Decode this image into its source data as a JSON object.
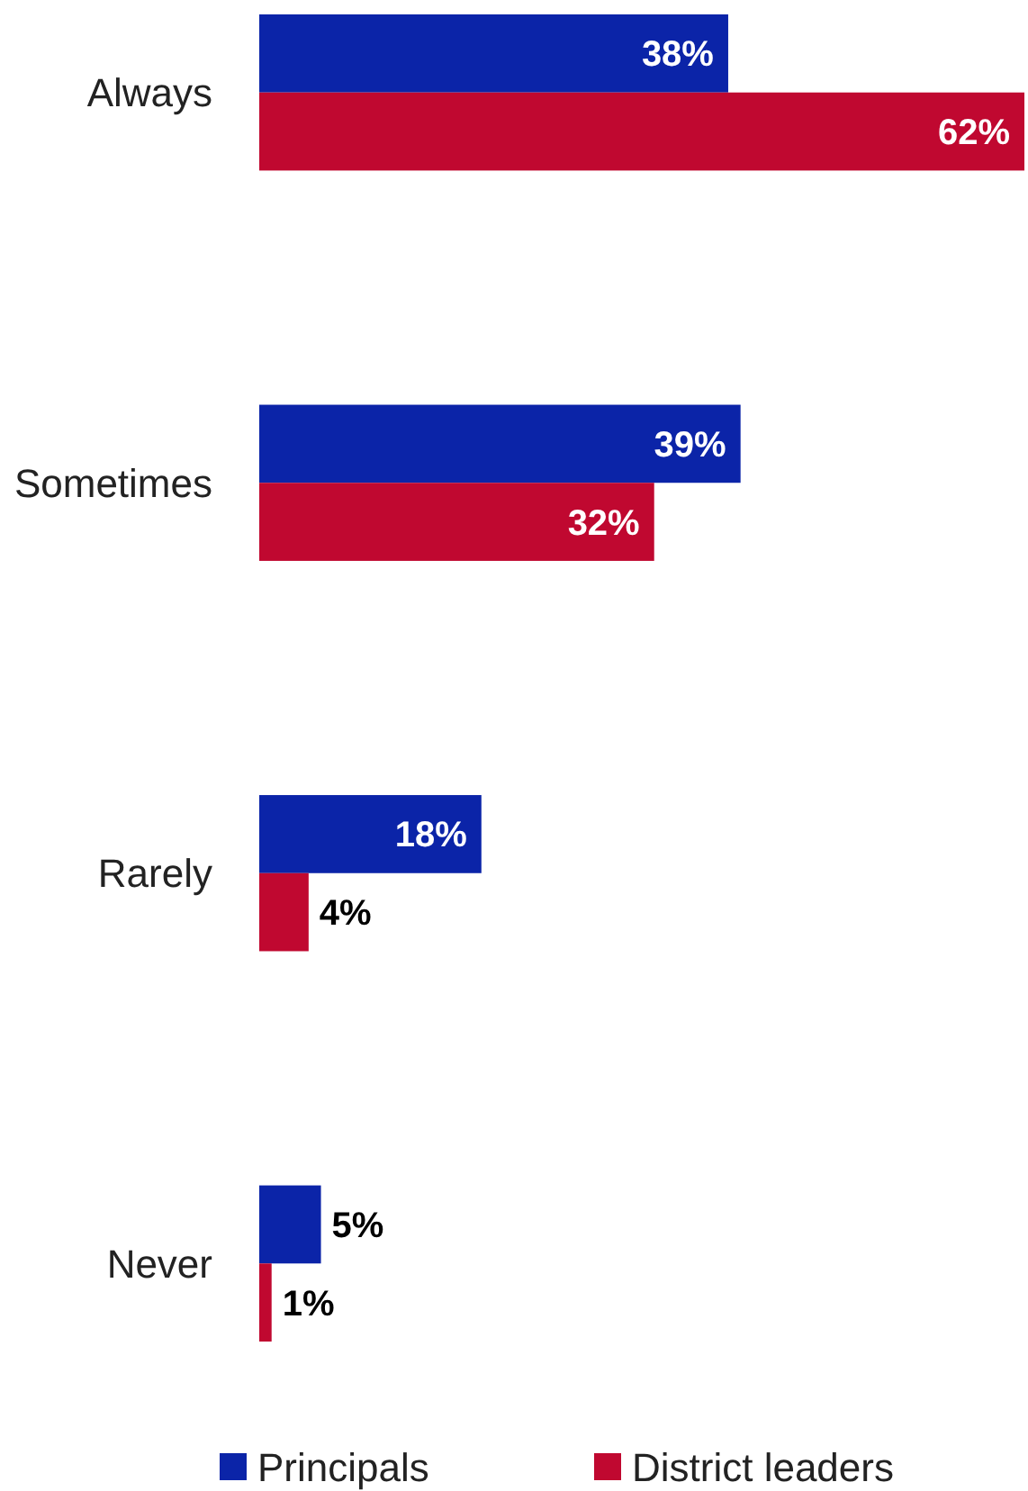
{
  "chart_data": {
    "type": "bar",
    "orientation": "horizontal",
    "categories": [
      "Always",
      "Sometimes",
      "Rarely",
      "Never"
    ],
    "series": [
      {
        "name": "Principals",
        "color": "#0b24a8",
        "values": [
          38,
          39,
          18,
          5
        ],
        "value_labels": [
          "38%",
          "39%",
          "18%",
          "5%"
        ]
      },
      {
        "name": "District leaders",
        "color": "#c00830",
        "values": [
          62,
          32,
          4,
          1
        ],
        "value_labels": [
          "62%",
          "32%",
          "4%",
          "1%"
        ]
      }
    ],
    "legend": "bottom"
  }
}
